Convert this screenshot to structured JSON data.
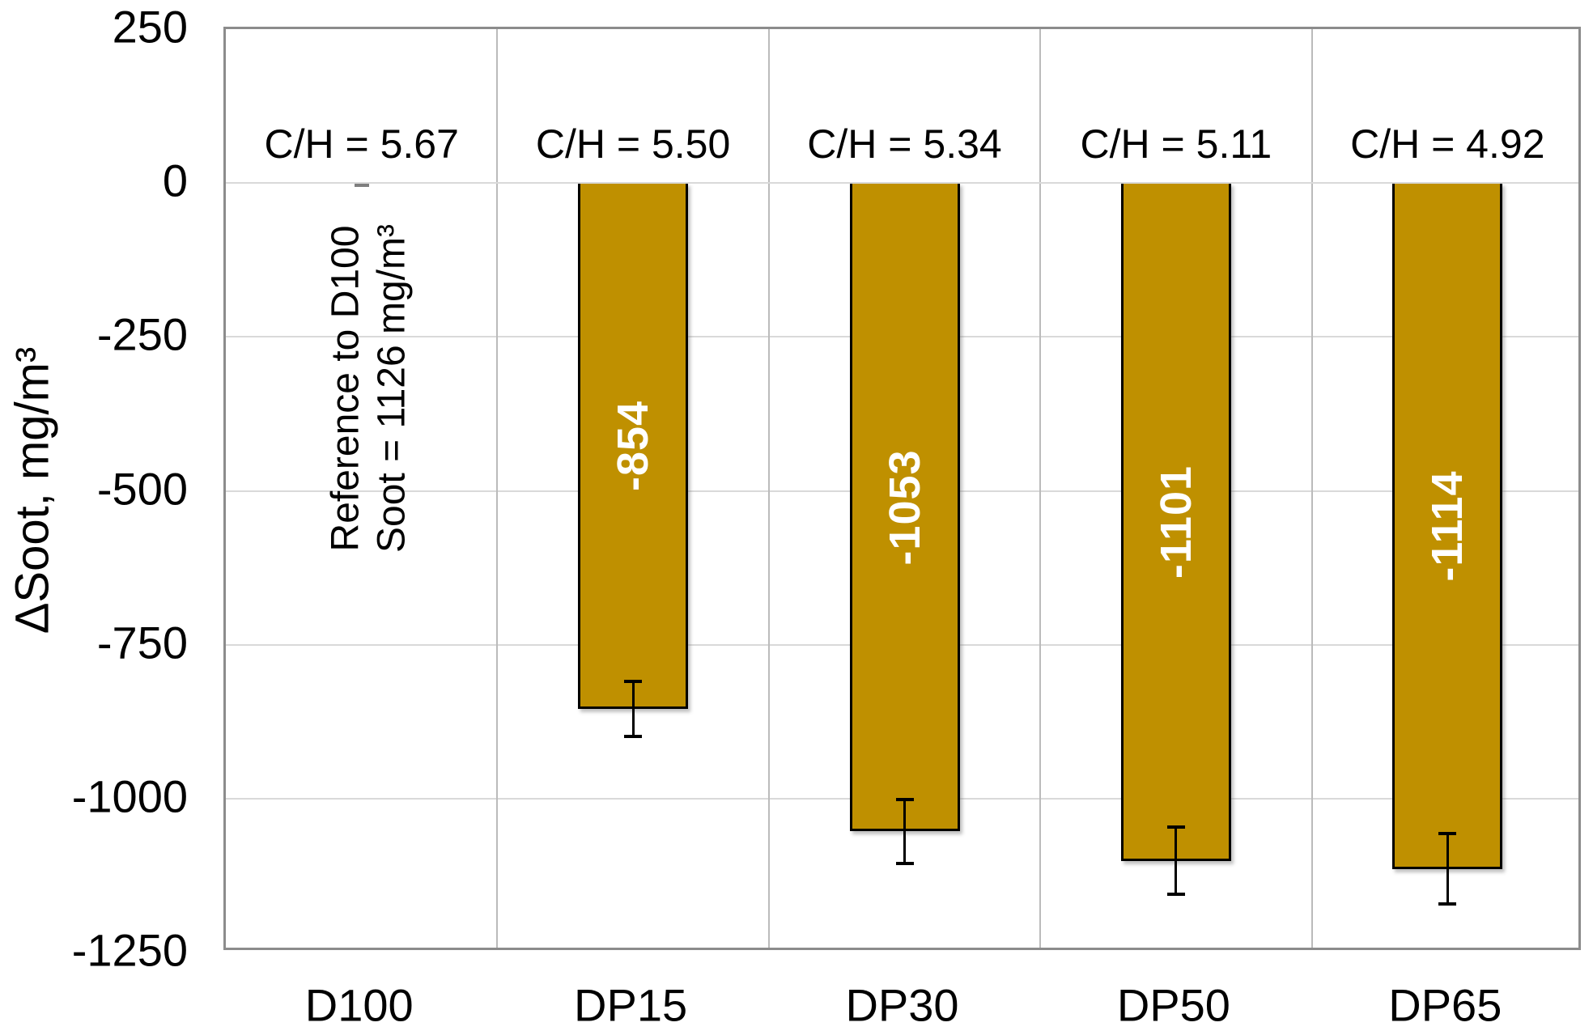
{
  "chart_data": {
    "type": "bar",
    "title": "",
    "xlabel": "",
    "ylabel": "ΔSoot, mg/m³",
    "categories": [
      "D100",
      "DP15",
      "DP30",
      "DP50",
      "DP65"
    ],
    "values": [
      0,
      -854,
      -1053,
      -1101,
      -1114
    ],
    "bar_labels": [
      "",
      "-854",
      "-1053",
      "-1101",
      "-1114"
    ],
    "error_bars": [
      0,
      45,
      52,
      55,
      57
    ],
    "group_labels": [
      "C/H = 5.67",
      "C/H = 5.50",
      "C/H = 5.34",
      "C/H = 5.11",
      "C/H = 4.92"
    ],
    "annotation": {
      "line1": "Reference to D100",
      "line2": "Soot = 1126 mg/m³"
    },
    "ylim": [
      -1250,
      250
    ],
    "yticks": [
      250,
      0,
      -250,
      -500,
      -750,
      -1000,
      -1250
    ],
    "ytick_labels": [
      "250",
      "0",
      "-250",
      "-500",
      "-750",
      "-1000",
      "-1250"
    ],
    "grid": "horizontal-and-column-dividers",
    "legend": "none",
    "colors": {
      "bar_fill": "#BF9000",
      "bar_border": "#000000",
      "bar_value_text": "#FFFFFF",
      "gridline": "#D9D9D9",
      "column_divider": "#BBBBBB",
      "frame": "#8C8C8C",
      "error_bar": "#000000",
      "zero_marker": "#7F7F7F",
      "text": "#000000"
    }
  },
  "layout_note": "bar chart, reference category D100 has zero-height marker at 0"
}
